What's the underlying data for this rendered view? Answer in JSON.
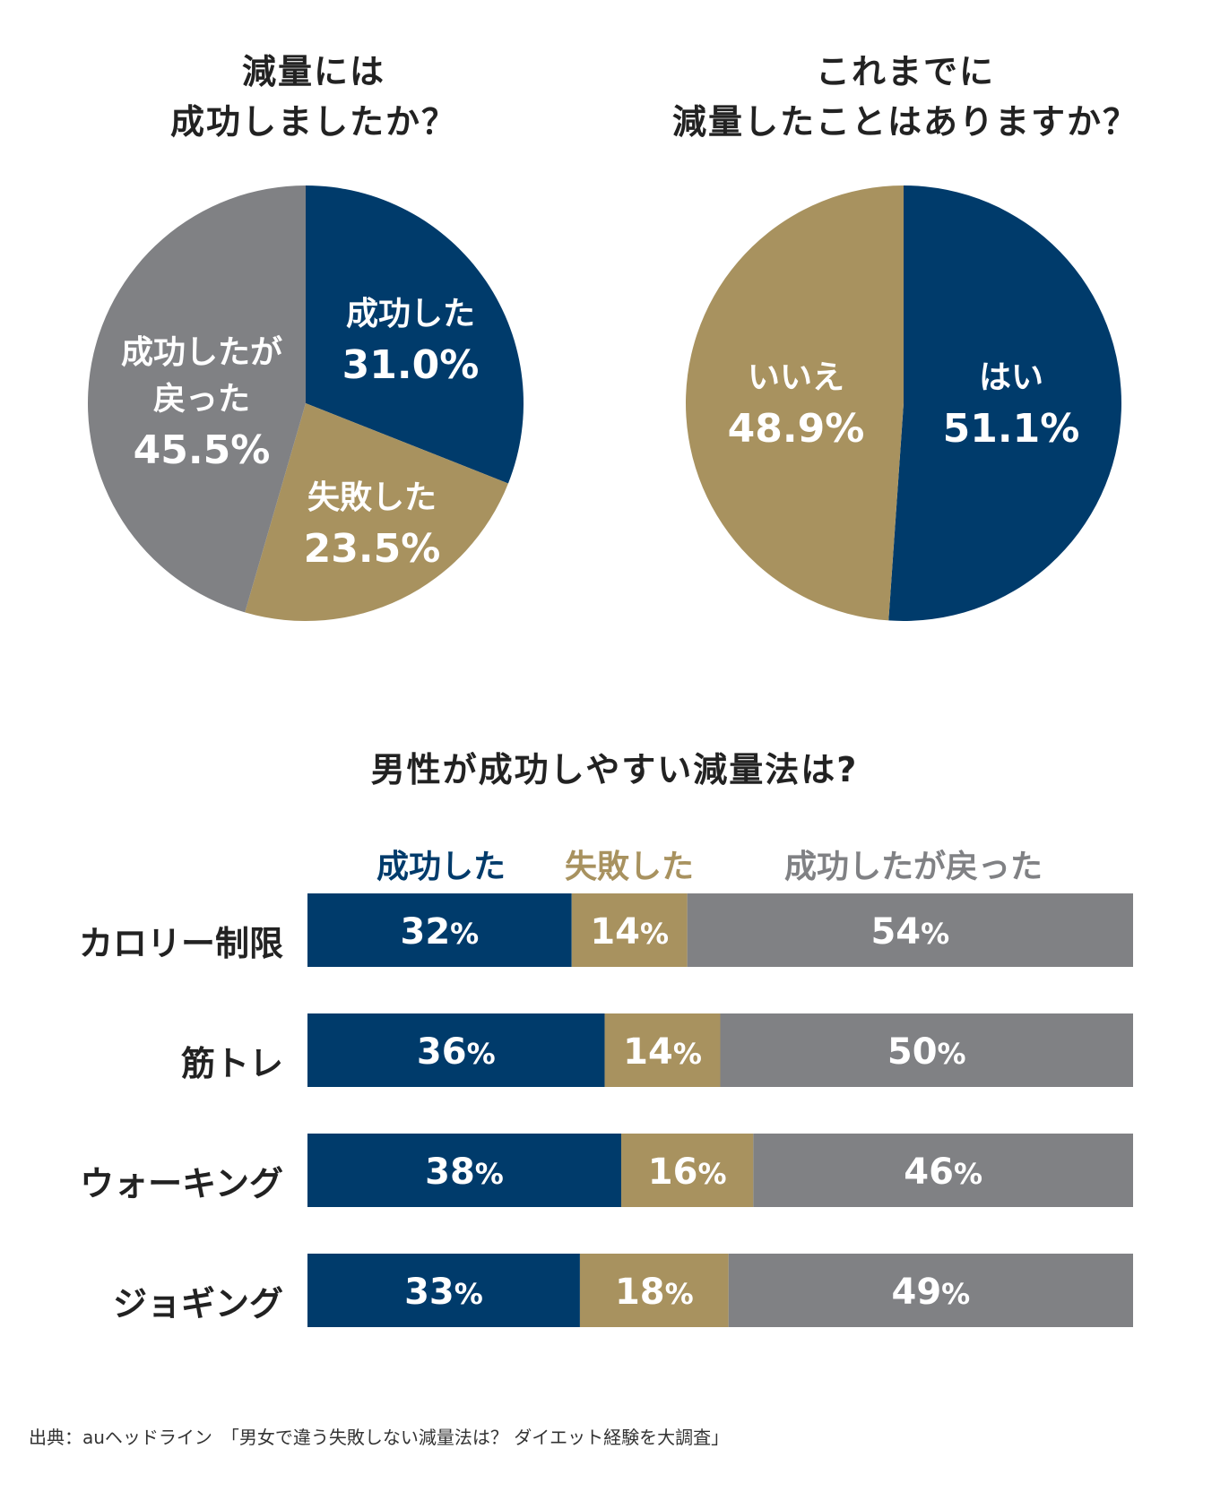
{
  "colors": {
    "navy": "#003b6b",
    "gold": "#a8925f",
    "gray": "#808184"
  },
  "chart_data": [
    {
      "type": "pie",
      "title_lines": [
        "減量には",
        "成功しましたか？"
      ],
      "slices": [
        {
          "label_lines": [
            "成功した"
          ],
          "value": 31.0,
          "value_text": "31.0%",
          "color": "navy"
        },
        {
          "label_lines": [
            "失敗した"
          ],
          "value": 23.5,
          "value_text": "23.5%",
          "color": "gold"
        },
        {
          "label_lines": [
            "成功したが",
            "戻った"
          ],
          "value": 45.5,
          "value_text": "45.5%",
          "color": "gray"
        }
      ]
    },
    {
      "type": "pie",
      "title_lines": [
        "これまでに",
        "減量したことはありますか？"
      ],
      "slices": [
        {
          "label_lines": [
            "はい"
          ],
          "value": 51.1,
          "value_text": "51.1%",
          "color": "navy"
        },
        {
          "label_lines": [
            "いいえ"
          ],
          "value": 48.9,
          "value_text": "48.9%",
          "color": "gold"
        }
      ]
    },
    {
      "type": "bar",
      "stacked": true,
      "orientation": "horizontal",
      "title": "男性が成功しやすい減量法は?",
      "categories": [
        "カロリー制限",
        "筋トレ",
        "ウォーキング",
        "ジョギング"
      ],
      "series": [
        {
          "name": "成功した",
          "color": "navy",
          "values": [
            32,
            36,
            38,
            33
          ]
        },
        {
          "name": "失敗した",
          "color": "gold",
          "values": [
            14,
            14,
            16,
            18
          ]
        },
        {
          "name": "成功したが戻った",
          "color": "gray",
          "values": [
            54,
            50,
            46,
            49
          ]
        }
      ],
      "unit": "%"
    }
  ],
  "source": "出典：auヘッドライン　「男女で違う失敗しない減量法は？ ダイエット経験を大調査」"
}
